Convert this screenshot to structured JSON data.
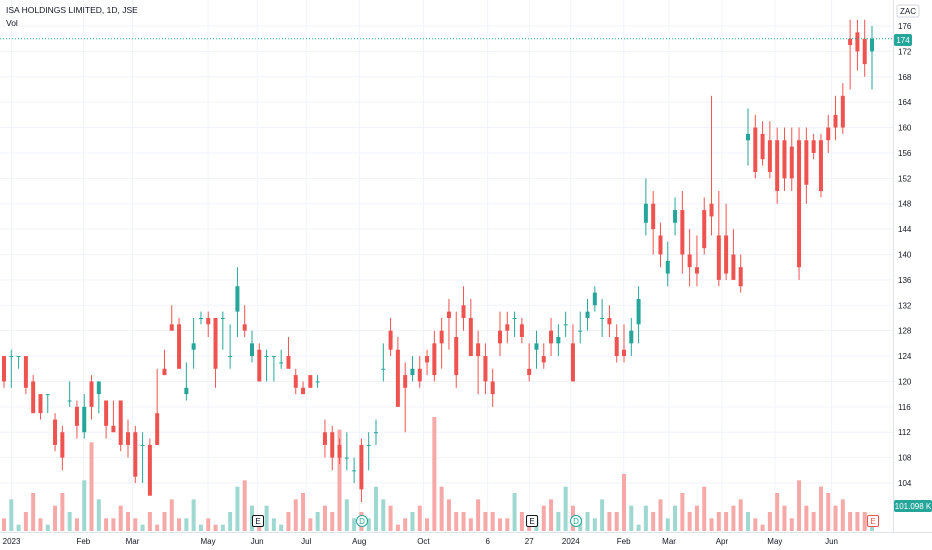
{
  "header": {
    "symbol_title": "ISA HOLDINGS LIMITED, 1D, JSE",
    "volume_label": "Vol",
    "currency_badge": "ZAC"
  },
  "price_axis": {
    "last_price": "174",
    "last_volume": "101.098 K"
  },
  "colors": {
    "up": "#26a69a",
    "down": "#ef5350",
    "up_volume": "#9fd8d1",
    "down_volume": "#f6a9a7",
    "grid": "#f0f3fa",
    "last_price_line": "#26a69a"
  },
  "events": [
    {
      "type": "earnings",
      "label": "E",
      "x_label": "Jun"
    },
    {
      "type": "dividend",
      "label": "D",
      "x_label": "Jul"
    },
    {
      "type": "earnings",
      "label": "E",
      "x_label": "6"
    },
    {
      "type": "dividend",
      "label": "D",
      "x_label": "27"
    },
    {
      "type": "earnings-upcoming",
      "label": "E",
      "x_label": "Jun"
    }
  ],
  "chart_data": {
    "type": "candlestick",
    "title": "ISA HOLDINGS LIMITED, 1D, JSE",
    "ylabel": "ZAC",
    "ylim": [
      100,
      178
    ],
    "y_ticks": [
      104,
      108,
      112,
      116,
      120,
      124,
      128,
      132,
      136,
      140,
      144,
      148,
      152,
      156,
      160,
      164,
      168,
      172,
      176
    ],
    "x_tick_labels": [
      "2023",
      "Feb",
      "Mar",
      "May",
      "Jun",
      "Jul",
      "Aug",
      "Oct",
      "6",
      "27",
      "2024",
      "Feb",
      "Mar",
      "Apr",
      "May",
      "Jun"
    ],
    "last_price": 174,
    "volume_last": "101.098K",
    "series": [
      {
        "name": "price",
        "ohlc": [
          [
            124,
            124,
            119,
            120
          ],
          [
            124,
            125,
            119,
            124
          ],
          [
            124,
            124,
            122,
            124
          ],
          [
            124,
            124,
            118,
            119
          ],
          [
            120,
            121,
            115,
            115
          ],
          [
            118,
            118,
            114,
            115
          ],
          [
            118,
            118,
            115,
            118
          ],
          [
            114,
            115,
            109,
            110
          ],
          [
            112,
            113,
            106,
            108
          ],
          [
            117,
            120,
            116,
            117
          ],
          [
            116,
            117,
            111,
            113
          ],
          [
            112,
            118,
            111,
            116
          ],
          [
            120,
            121,
            114,
            116
          ],
          [
            118,
            120,
            115,
            120
          ],
          [
            117,
            117,
            111,
            113
          ],
          [
            113,
            117,
            112,
            112
          ],
          [
            117,
            117,
            109,
            110
          ],
          [
            112,
            114,
            108,
            110
          ],
          [
            112,
            113,
            104,
            105
          ],
          [
            110,
            112,
            104,
            110
          ],
          [
            110,
            111,
            102,
            102
          ],
          [
            115,
            122,
            110,
            110
          ],
          [
            122,
            125,
            121,
            121
          ],
          [
            129,
            132,
            128,
            128
          ],
          [
            129,
            130,
            122,
            122
          ],
          [
            118,
            123,
            117,
            119
          ],
          [
            125,
            130,
            122,
            126
          ],
          [
            130,
            131,
            129,
            130
          ],
          [
            130,
            131,
            127,
            129
          ],
          [
            130,
            130,
            119,
            122
          ],
          [
            130,
            131,
            125,
            130
          ],
          [
            124,
            129,
            122,
            124
          ],
          [
            131,
            138,
            127,
            135
          ],
          [
            129,
            132,
            127,
            128
          ],
          [
            124,
            128,
            123,
            126
          ],
          [
            125,
            126,
            120,
            120
          ],
          [
            124,
            125,
            120,
            124
          ],
          [
            124,
            124,
            120,
            124
          ],
          [
            123,
            125,
            122,
            123
          ],
          [
            124,
            127,
            122,
            122
          ],
          [
            121,
            122,
            118,
            119
          ],
          [
            119,
            120,
            118,
            118
          ],
          [
            121,
            121,
            119,
            119
          ],
          [
            120,
            121,
            119,
            120
          ],
          [
            112,
            114,
            108,
            110
          ],
          [
            112,
            113,
            106,
            108
          ],
          [
            110,
            111,
            107,
            108
          ],
          [
            108,
            112,
            106,
            108
          ],
          [
            106,
            108,
            104,
            106
          ],
          [
            110,
            111,
            101,
            103
          ],
          [
            110,
            112,
            106,
            110
          ],
          [
            112,
            114,
            110,
            112
          ],
          [
            122,
            126,
            120,
            122
          ],
          [
            128,
            130,
            124,
            125
          ],
          [
            125,
            127,
            116,
            116
          ],
          [
            121,
            123,
            112,
            119
          ],
          [
            121,
            124,
            120,
            122
          ],
          [
            122,
            124,
            119,
            120
          ],
          [
            124,
            125,
            121,
            123
          ],
          [
            126,
            128,
            120,
            121
          ],
          [
            128,
            130,
            122,
            126
          ],
          [
            131,
            133,
            125,
            130
          ],
          [
            127,
            131,
            119,
            121
          ],
          [
            132,
            135,
            128,
            130
          ],
          [
            130,
            133,
            124,
            124
          ],
          [
            126,
            128,
            118,
            124
          ],
          [
            124,
            126,
            118,
            120
          ],
          [
            120,
            122,
            116,
            118
          ],
          [
            128,
            131,
            124,
            126
          ],
          [
            129,
            131,
            126,
            128
          ],
          [
            130,
            131,
            127,
            130
          ],
          [
            129,
            130,
            126,
            127
          ],
          [
            122,
            126,
            120,
            121
          ],
          [
            125,
            128,
            122,
            126
          ],
          [
            124,
            126,
            122,
            123
          ],
          [
            128,
            130,
            124,
            126
          ],
          [
            126,
            129,
            124,
            127
          ],
          [
            129,
            131,
            127,
            129
          ],
          [
            126,
            129,
            120,
            120
          ],
          [
            128,
            131,
            126,
            128
          ],
          [
            130,
            133,
            128,
            131
          ],
          [
            132,
            135,
            131,
            134
          ],
          [
            130,
            133,
            127,
            130
          ],
          [
            130,
            132,
            127,
            129
          ],
          [
            127,
            129,
            123,
            124
          ],
          [
            125,
            129,
            123,
            124
          ],
          [
            126,
            130,
            124,
            128
          ],
          [
            129,
            135,
            126,
            133
          ],
          [
            145,
            152,
            143,
            148
          ],
          [
            148,
            150,
            140,
            144
          ],
          [
            143,
            145,
            138,
            140
          ],
          [
            137,
            142,
            135,
            139
          ],
          [
            145,
            149,
            143,
            147
          ],
          [
            147,
            150,
            137,
            140
          ],
          [
            140,
            144,
            135,
            138
          ],
          [
            138,
            143,
            135,
            137
          ],
          [
            147,
            149,
            140,
            141
          ],
          [
            148,
            165,
            143,
            146
          ],
          [
            143,
            150,
            135,
            136
          ],
          [
            143,
            148,
            136,
            137
          ],
          [
            140,
            144,
            136,
            136
          ],
          [
            138,
            140,
            134,
            135
          ],
          [
            158,
            163,
            154,
            159
          ],
          [
            160,
            162,
            152,
            153
          ],
          [
            159,
            161,
            154,
            155
          ],
          [
            158,
            161,
            152,
            153
          ],
          [
            158,
            160,
            148,
            150
          ],
          [
            158,
            160,
            150,
            152
          ],
          [
            157,
            160,
            150,
            152
          ],
          [
            158,
            160,
            136,
            138
          ],
          [
            158,
            160,
            148,
            151
          ],
          [
            158,
            159,
            155,
            156
          ],
          [
            158,
            159,
            149,
            150
          ],
          [
            160,
            162,
            156,
            158
          ],
          [
            162,
            165,
            158,
            160
          ],
          [
            165,
            167,
            159,
            160
          ],
          [
            174,
            177,
            166,
            173
          ],
          [
            175,
            177,
            169,
            172
          ],
          [
            174,
            177,
            168,
            170
          ],
          [
            172,
            176,
            166,
            174
          ]
        ]
      },
      {
        "name": "volume",
        "values": [
          2,
          5,
          1,
          3,
          6,
          2,
          1,
          4,
          6,
          3,
          2,
          8,
          14,
          5,
          2,
          2,
          4,
          3,
          2,
          1,
          3,
          1,
          3,
          5,
          2,
          2,
          5,
          1,
          2,
          1,
          1,
          3,
          7,
          8,
          4,
          2,
          4,
          2,
          1,
          3,
          5,
          6,
          2,
          3,
          4,
          3,
          16,
          5,
          2,
          3,
          2,
          7,
          5,
          4,
          1,
          2,
          3,
          4,
          2,
          18,
          7,
          5,
          3,
          3,
          2,
          5,
          3,
          3,
          2,
          2,
          6,
          3,
          2,
          2,
          4,
          5,
          3,
          7,
          4,
          2,
          3,
          2,
          5,
          3,
          3,
          9,
          4,
          1,
          4,
          3,
          5,
          2,
          4,
          6,
          3,
          4,
          7,
          2,
          3,
          3,
          4,
          5,
          3,
          2,
          1,
          3,
          6,
          4,
          2,
          8,
          4,
          3,
          7,
          6,
          4,
          5,
          3,
          3,
          3,
          2
        ]
      }
    ]
  }
}
